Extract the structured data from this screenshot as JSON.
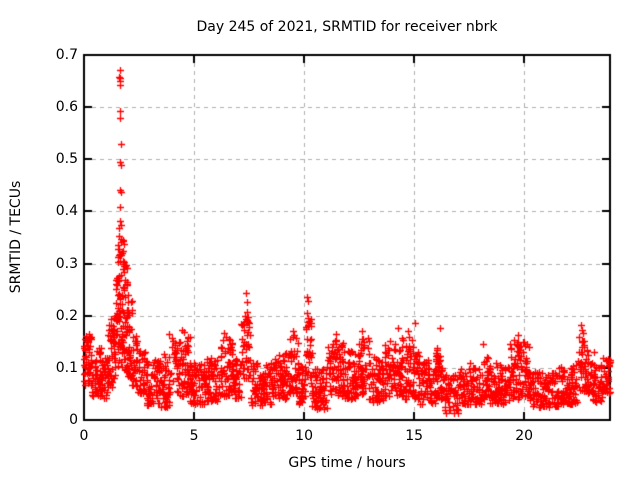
{
  "chart_data": {
    "type": "scatter",
    "title": "Day 245 of 2021, SRMTID for receiver nbrk",
    "xlabel": "GPS time / hours",
    "ylabel": "SRMTID / TECUs",
    "xlim": [
      0,
      23.9
    ],
    "ylim": [
      0,
      0.7
    ],
    "xtick_values": [
      0,
      5,
      10,
      15,
      20
    ],
    "xtick_labels": [
      "0",
      "5",
      "10",
      "15",
      "20"
    ],
    "ytick_values": [
      0,
      0.1,
      0.2,
      0.3,
      0.4,
      0.5,
      0.6,
      0.7
    ],
    "ytick_labels": [
      "0",
      "0.1",
      "0.2",
      "0.3",
      "0.4",
      "0.5",
      "0.6",
      "0.7"
    ],
    "grid": true,
    "legend": "none",
    "marker": {
      "shape": "plus",
      "size": 7,
      "stroke_width": 1.3,
      "color": "#ff0000"
    },
    "colors": {
      "background": "#ffffff",
      "border": "#000000",
      "grid": "#b0b0b0",
      "text": "#000000",
      "series": "#ff0000"
    },
    "seed": 245,
    "baseline_segments": [
      [
        0.0,
        0.35,
        0.06,
        0.168,
        0.7,
        50
      ],
      [
        0.35,
        0.8,
        0.045,
        0.14,
        1.0,
        50
      ],
      [
        0.8,
        1.1,
        0.04,
        0.12,
        1.1,
        35
      ],
      [
        1.1,
        1.3,
        0.06,
        0.2,
        1.2,
        28
      ],
      [
        1.3,
        1.45,
        0.08,
        0.23,
        1.2,
        25
      ],
      [
        1.45,
        1.62,
        0.1,
        0.34,
        1.1,
        38
      ],
      [
        1.62,
        1.82,
        0.1,
        0.35,
        1.1,
        45
      ],
      [
        1.82,
        2.0,
        0.09,
        0.3,
        1.2,
        38
      ],
      [
        2.0,
        2.18,
        0.08,
        0.23,
        1.2,
        30
      ],
      [
        2.18,
        2.4,
        0.06,
        0.165,
        1.2,
        26
      ],
      [
        2.4,
        2.8,
        0.05,
        0.14,
        1.3,
        40
      ],
      [
        2.8,
        3.5,
        0.028,
        0.115,
        1.3,
        70
      ],
      [
        3.5,
        3.95,
        0.025,
        0.13,
        1.4,
        45
      ],
      [
        3.95,
        4.8,
        0.045,
        0.16,
        1.3,
        85
      ],
      [
        4.8,
        5.5,
        0.03,
        0.11,
        1.3,
        65
      ],
      [
        5.5,
        6.1,
        0.035,
        0.12,
        1.3,
        60
      ],
      [
        6.1,
        6.75,
        0.045,
        0.155,
        1.2,
        65
      ],
      [
        6.75,
        7.15,
        0.04,
        0.12,
        1.3,
        40
      ],
      [
        7.15,
        7.55,
        0.07,
        0.2,
        1.1,
        42
      ],
      [
        7.55,
        8.5,
        0.028,
        0.11,
        1.3,
        90
      ],
      [
        8.5,
        9.3,
        0.04,
        0.13,
        1.2,
        80
      ],
      [
        9.3,
        9.75,
        0.05,
        0.16,
        1.2,
        45
      ],
      [
        9.75,
        10.05,
        0.03,
        0.11,
        1.3,
        30
      ],
      [
        10.05,
        10.35,
        0.07,
        0.2,
        1.1,
        32
      ],
      [
        10.35,
        11.05,
        0.02,
        0.1,
        1.3,
        65
      ],
      [
        11.05,
        11.85,
        0.045,
        0.155,
        1.2,
        80
      ],
      [
        11.85,
        12.45,
        0.04,
        0.135,
        1.3,
        60
      ],
      [
        12.45,
        12.95,
        0.05,
        0.16,
        1.2,
        50
      ],
      [
        12.95,
        13.6,
        0.035,
        0.125,
        1.3,
        62
      ],
      [
        13.6,
        14.45,
        0.045,
        0.15,
        1.2,
        85
      ],
      [
        14.45,
        15.25,
        0.04,
        0.16,
        1.2,
        80
      ],
      [
        15.25,
        16.0,
        0.03,
        0.115,
        1.3,
        70
      ],
      [
        16.0,
        16.4,
        0.04,
        0.14,
        1.2,
        40
      ],
      [
        16.4,
        17.05,
        0.012,
        0.09,
        1.2,
        55
      ],
      [
        17.05,
        18.05,
        0.03,
        0.11,
        1.3,
        95
      ],
      [
        18.05,
        18.45,
        0.04,
        0.125,
        1.2,
        40
      ],
      [
        18.45,
        19.35,
        0.03,
        0.11,
        1.3,
        85
      ],
      [
        19.35,
        20.25,
        0.04,
        0.15,
        1.2,
        90
      ],
      [
        20.25,
        21.55,
        0.025,
        0.092,
        1.3,
        115
      ],
      [
        21.55,
        22.45,
        0.03,
        0.105,
        1.3,
        80
      ],
      [
        22.45,
        22.9,
        0.055,
        0.16,
        1.1,
        48
      ],
      [
        22.9,
        23.55,
        0.035,
        0.115,
        1.3,
        60
      ],
      [
        23.55,
        23.9,
        0.05,
        0.125,
        1.1,
        35
      ]
    ],
    "outlier_points": [
      [
        1.62,
        0.671
      ],
      [
        1.6,
        0.658
      ],
      [
        1.63,
        0.655
      ],
      [
        1.615,
        0.65
      ],
      [
        1.62,
        0.643
      ],
      [
        1.64,
        0.593
      ],
      [
        1.63,
        0.579
      ],
      [
        1.66,
        0.529
      ],
      [
        1.63,
        0.495
      ],
      [
        1.665,
        0.489
      ],
      [
        1.65,
        0.441
      ],
      [
        1.68,
        0.437
      ],
      [
        1.64,
        0.409
      ],
      [
        1.62,
        0.381
      ],
      [
        1.66,
        0.374
      ],
      [
        1.6,
        0.368
      ],
      [
        1.59,
        0.352
      ],
      [
        1.67,
        0.348
      ],
      [
        7.38,
        0.243
      ],
      [
        7.4,
        0.226
      ],
      [
        7.42,
        0.208
      ],
      [
        7.36,
        0.194
      ],
      [
        7.44,
        0.188
      ],
      [
        10.14,
        0.235
      ],
      [
        10.16,
        0.229
      ],
      [
        10.13,
        0.205
      ],
      [
        10.18,
        0.196
      ],
      [
        10.2,
        0.188
      ],
      [
        3.88,
        0.165
      ],
      [
        4.45,
        0.172
      ],
      [
        4.55,
        0.168
      ],
      [
        6.35,
        0.166
      ],
      [
        6.45,
        0.16
      ],
      [
        9.48,
        0.17
      ],
      [
        9.56,
        0.163
      ],
      [
        11.45,
        0.164
      ],
      [
        12.62,
        0.17
      ],
      [
        13.92,
        0.152
      ],
      [
        14.28,
        0.176
      ],
      [
        14.74,
        0.17
      ],
      [
        15.02,
        0.186
      ],
      [
        16.18,
        0.176
      ],
      [
        18.14,
        0.146
      ],
      [
        19.52,
        0.153
      ],
      [
        19.74,
        0.163
      ],
      [
        22.6,
        0.182
      ],
      [
        22.64,
        0.173
      ],
      [
        22.68,
        0.166
      ],
      [
        23.18,
        0.13
      ]
    ]
  }
}
